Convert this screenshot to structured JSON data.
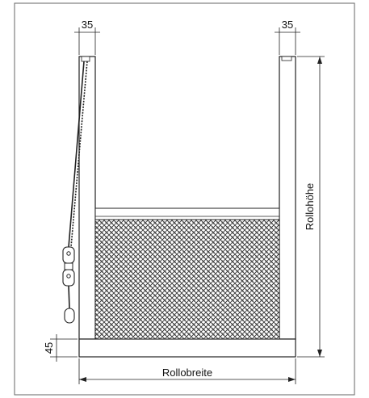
{
  "dimensions": {
    "left_post_width": "35",
    "right_post_width": "35",
    "bottom_height": "45",
    "roll_height": "Rollohöhe",
    "roll_width": "Rollobreite"
  },
  "colors": {
    "line": "#222222",
    "frame_fill": "#ffffff",
    "mesh_fill": "#d9d9d9",
    "mesh_pattern": "#333333",
    "cord": "#222222"
  }
}
